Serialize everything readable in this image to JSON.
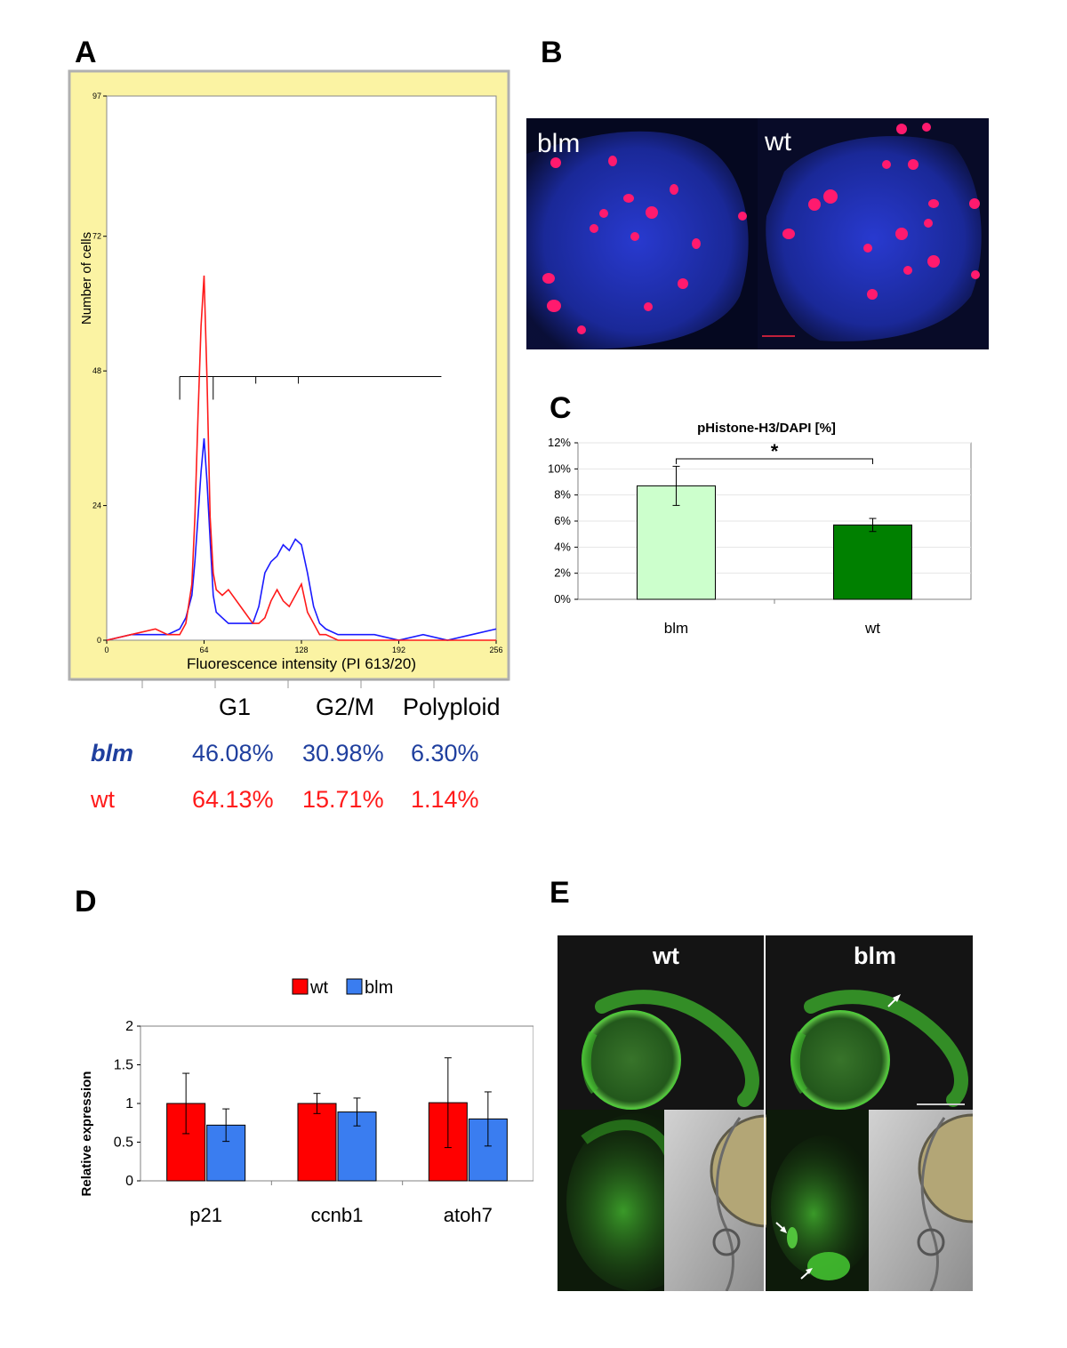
{
  "panels": {
    "a": "A",
    "b": "B",
    "c": "C",
    "d": "D",
    "e": "E"
  },
  "panel_a": {
    "ylabel": "Number of cells",
    "xlabel": "Fluorescence intensity (PI 613/20)",
    "yticks": [
      "97",
      "72",
      "48",
      "24",
      "0"
    ],
    "xticks": [
      "0",
      "64",
      "128",
      "192",
      "256"
    ],
    "table": {
      "headers": [
        "G1",
        "G2/M",
        "Polyploid"
      ],
      "rows": [
        {
          "label": "blm",
          "values": [
            "46.08%",
            "30.98%",
            "6.30%"
          ],
          "color": "#1f3f9e"
        },
        {
          "label": "wt",
          "values": [
            "64.13%",
            "15.71%",
            "1.14%"
          ],
          "color": "#ff1a1a"
        }
      ]
    },
    "colors": {
      "background": "#fbf3a3",
      "plot": "#ffffff",
      "blm_line": "#1a1aff",
      "wt_line": "#ff1a1a"
    }
  },
  "panel_b": {
    "left_label": "blm",
    "right_label": "wt"
  },
  "panel_e": {
    "left_label": "wt",
    "right_label": "blm"
  },
  "chart_data": [
    {
      "type": "line",
      "title": "",
      "xlabel": "Fluorescence intensity (PI 613/20)",
      "ylabel": "Number of cells",
      "xlim": [
        0,
        256
      ],
      "ylim": [
        0,
        97
      ],
      "series": [
        {
          "name": "blm",
          "x": [
            0,
            16,
            32,
            40,
            48,
            52,
            56,
            58,
            60,
            62,
            64,
            66,
            68,
            70,
            72,
            76,
            80,
            88,
            96,
            100,
            104,
            108,
            112,
            116,
            120,
            124,
            128,
            132,
            136,
            140,
            144,
            152,
            160,
            176,
            192,
            208,
            224,
            240,
            256
          ],
          "y": [
            0,
            1,
            1,
            1,
            2,
            4,
            8,
            14,
            22,
            30,
            36,
            28,
            18,
            8,
            5,
            4,
            3,
            3,
            3,
            6,
            12,
            14,
            15,
            17,
            16,
            18,
            17,
            12,
            6,
            3,
            2,
            1,
            1,
            1,
            0,
            1,
            0,
            1,
            2
          ]
        },
        {
          "name": "wt",
          "x": [
            0,
            16,
            32,
            40,
            48,
            52,
            56,
            58,
            60,
            62,
            64,
            66,
            68,
            70,
            72,
            76,
            80,
            88,
            96,
            100,
            104,
            108,
            112,
            116,
            120,
            124,
            128,
            132,
            136,
            140,
            144,
            152,
            160,
            176,
            192,
            208,
            224,
            240,
            256
          ],
          "y": [
            0,
            1,
            2,
            1,
            1,
            3,
            10,
            22,
            40,
            56,
            65,
            46,
            22,
            12,
            9,
            8,
            9,
            6,
            3,
            3,
            4,
            7,
            9,
            7,
            6,
            8,
            10,
            5,
            3,
            1,
            1,
            0,
            0,
            0,
            0,
            0,
            0,
            0,
            0
          ]
        }
      ],
      "gates": [
        {
          "from": 48,
          "to": 70
        },
        {
          "from": 70,
          "to": 98
        },
        {
          "from": 98,
          "to": 126
        },
        {
          "from": 126,
          "to": 220
        }
      ]
    },
    {
      "type": "bar",
      "title": "pHistone-H3/DAPI [%]",
      "categories": [
        "blm",
        "wt"
      ],
      "values": [
        8.7,
        5.7
      ],
      "errors": [
        1.5,
        0.5
      ],
      "colors": [
        "#ccffcc",
        "#008000"
      ],
      "yticks": [
        "0%",
        "2%",
        "4%",
        "6%",
        "8%",
        "10%",
        "12%"
      ],
      "ylim": [
        0,
        12
      ],
      "significance": "*"
    },
    {
      "type": "bar",
      "title": "",
      "ylabel": "Relative expression",
      "categories": [
        "p21",
        "ccnb1",
        "atoh7"
      ],
      "series": [
        {
          "name": "wt",
          "values": [
            1.0,
            1.0,
            1.01
          ],
          "errors": [
            0.39,
            0.13,
            0.58
          ],
          "color": "#ff0000"
        },
        {
          "name": "blm",
          "values": [
            0.72,
            0.89,
            0.8
          ],
          "errors": [
            0.21,
            0.18,
            0.35
          ],
          "color": "#3a7df0"
        }
      ],
      "yticks": [
        "0",
        "0.5",
        "1",
        "1.5",
        "2"
      ],
      "ylim": [
        0,
        2
      ]
    }
  ]
}
